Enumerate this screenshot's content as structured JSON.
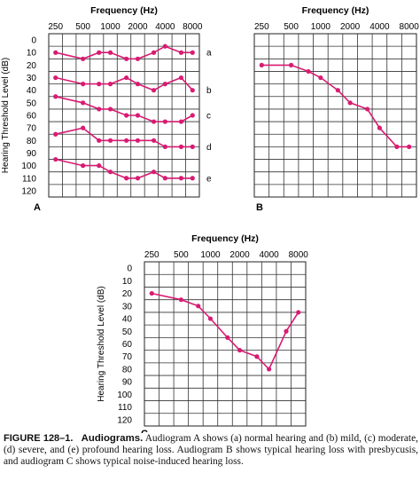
{
  "figure": {
    "caption_label": "FIGURE 128–1.",
    "caption_title": "Audiograms.",
    "caption_text": "Audiogram A shows (a) normal hearing and (b) mild, (c) moderate, (d) severe, and (e) profound hearing loss. Audiogram B shows typical hearing loss with presbycusis, and audiogram C shows typical noise-induced hearing loss.",
    "line_color": "#d81b72"
  },
  "chart_data": [
    {
      "type": "line",
      "panel": "A",
      "xlabel": "Frequency (Hz)",
      "ylabel": "Hearing Threshold Level (dB)",
      "x_ticks": [
        "250",
        "500",
        "1000",
        "2000",
        "4000",
        "8000"
      ],
      "y_ticks": [
        0,
        10,
        20,
        30,
        40,
        50,
        60,
        70,
        80,
        90,
        100,
        110,
        120
      ],
      "ylim": [
        0,
        120
      ],
      "y_inverted": true,
      "x_scale": "log2",
      "grid": true,
      "series": [
        {
          "name": "a",
          "x": [
            250,
            500,
            750,
            1000,
            1500,
            2000,
            3000,
            4000,
            6000,
            8000
          ],
          "y": [
            10,
            15,
            10,
            10,
            15,
            15,
            10,
            5,
            10,
            10
          ]
        },
        {
          "name": "b",
          "x": [
            250,
            500,
            750,
            1000,
            1500,
            2000,
            3000,
            4000,
            6000,
            8000
          ],
          "y": [
            30,
            35,
            35,
            35,
            30,
            35,
            40,
            35,
            30,
            40
          ]
        },
        {
          "name": "c",
          "x": [
            250,
            500,
            750,
            1000,
            1500,
            2000,
            3000,
            4000,
            6000,
            8000
          ],
          "y": [
            45,
            50,
            55,
            55,
            60,
            60,
            65,
            65,
            65,
            60
          ]
        },
        {
          "name": "d",
          "x": [
            250,
            500,
            750,
            1000,
            1500,
            2000,
            3000,
            4000,
            6000,
            8000
          ],
          "y": [
            75,
            70,
            80,
            80,
            80,
            80,
            80,
            85,
            85,
            85
          ]
        },
        {
          "name": "e",
          "x": [
            250,
            500,
            750,
            1000,
            1500,
            2000,
            3000,
            4000,
            6000,
            8000
          ],
          "y": [
            95,
            100,
            100,
            105,
            110,
            110,
            105,
            110,
            110,
            110
          ]
        }
      ]
    },
    {
      "type": "line",
      "panel": "B",
      "xlabel": "Frequency (Hz)",
      "x_ticks": [
        "250",
        "500",
        "1000",
        "2000",
        "4000",
        "8000"
      ],
      "y_ticks": [],
      "ylim": [
        0,
        120
      ],
      "y_inverted": true,
      "x_scale": "log2",
      "grid": true,
      "series": [
        {
          "name": "",
          "x": [
            250,
            500,
            750,
            1000,
            1500,
            2000,
            3000,
            4000,
            6000,
            8000
          ],
          "y": [
            20,
            20,
            25,
            30,
            40,
            50,
            55,
            70,
            85,
            85
          ]
        }
      ]
    },
    {
      "type": "line",
      "panel": "C",
      "xlabel": "Frequency (Hz)",
      "ylabel": "Hearing Threshold Level (dB)",
      "x_ticks": [
        "250",
        "500",
        "1000",
        "2000",
        "4000",
        "8000"
      ],
      "y_ticks": [
        0,
        10,
        20,
        30,
        40,
        50,
        60,
        70,
        80,
        90,
        100,
        110,
        120
      ],
      "ylim": [
        0,
        120
      ],
      "y_inverted": true,
      "x_scale": "log2",
      "grid": true,
      "series": [
        {
          "name": "",
          "x": [
            250,
            500,
            750,
            1000,
            1500,
            2000,
            3000,
            4000,
            6000,
            8000
          ],
          "y": [
            20,
            25,
            30,
            40,
            55,
            65,
            70,
            80,
            50,
            35
          ]
        }
      ]
    }
  ]
}
